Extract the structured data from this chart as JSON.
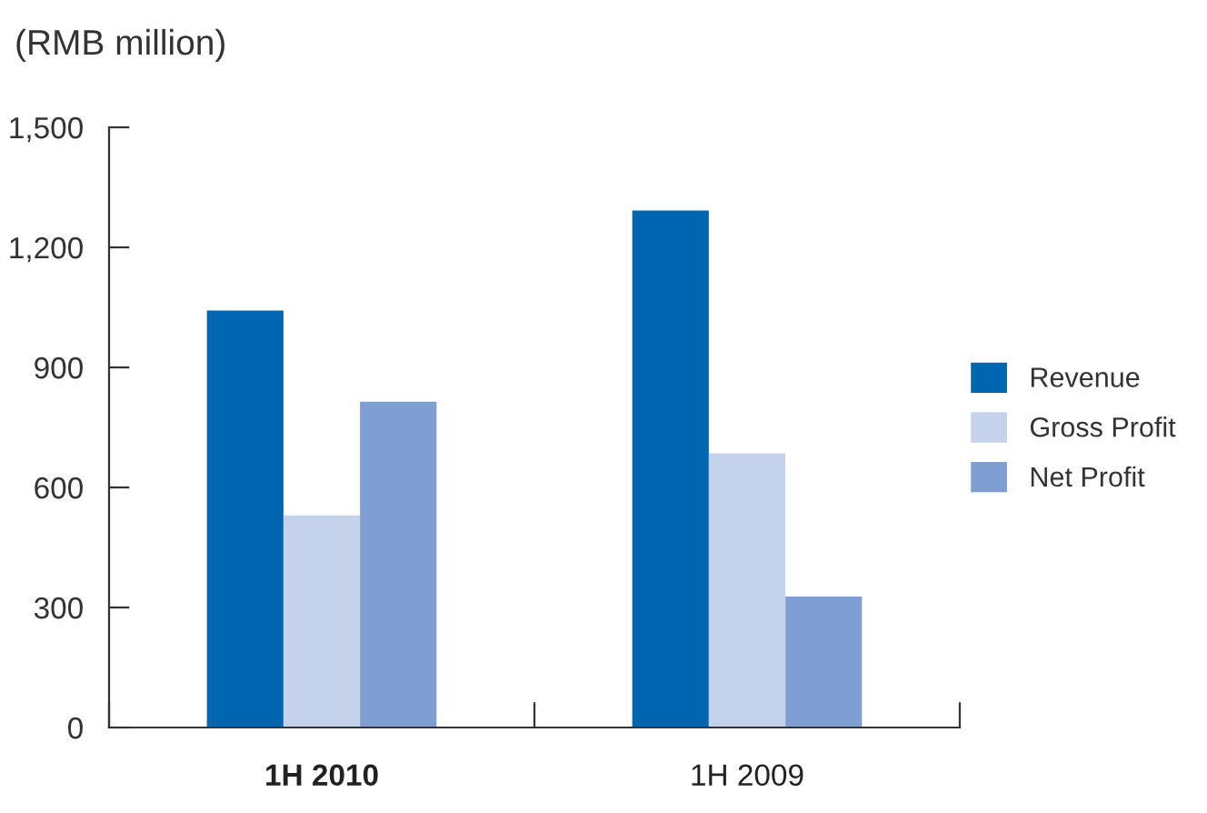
{
  "chart_data": {
    "type": "bar",
    "ylabel": "(RMB million)",
    "categories": [
      "1H 2010",
      "1H 2009"
    ],
    "series": [
      {
        "name": "Revenue",
        "color": "#0066b2",
        "values": [
          1042,
          1292
        ]
      },
      {
        "name": "Gross Profit",
        "color": "#c5d2eb",
        "values": [
          530,
          685
        ]
      },
      {
        "name": "Net Profit",
        "color": "#7f9fd3",
        "values": [
          814,
          327
        ]
      }
    ],
    "ylim": [
      0,
      1500
    ],
    "yticks": [
      {
        "value": 0,
        "label": "0"
      },
      {
        "value": 300,
        "label": "300"
      },
      {
        "value": 600,
        "label": "600"
      },
      {
        "value": 900,
        "label": "900"
      },
      {
        "value": 1200,
        "label": "1,200"
      },
      {
        "value": 1500,
        "label": "1,500"
      }
    ],
    "grid": false,
    "legend": "right"
  }
}
